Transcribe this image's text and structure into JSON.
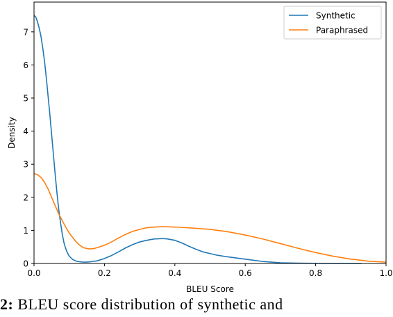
{
  "caption": {
    "figure_label": "2:",
    "text": "BLEU score distribution of synthetic and"
  },
  "chart_data": {
    "type": "line",
    "xlabel": "BLEU Score",
    "ylabel": "Density",
    "xlim": [
      0.0,
      1.0
    ],
    "ylim": [
      0,
      7.9
    ],
    "xticks": [
      "0.0",
      "0.2",
      "0.4",
      "0.6",
      "0.8",
      "1.0"
    ],
    "yticks": [
      "0",
      "1",
      "2",
      "3",
      "4",
      "5",
      "6",
      "7"
    ],
    "legend_position": "top-right",
    "grid": false,
    "series": [
      {
        "name": "Synthetic",
        "color": "#1f77b4",
        "x": [
          0.0,
          0.005,
          0.01,
          0.015,
          0.02,
          0.025,
          0.03,
          0.035,
          0.04,
          0.045,
          0.05,
          0.055,
          0.06,
          0.065,
          0.07,
          0.075,
          0.08,
          0.085,
          0.09,
          0.095,
          0.1,
          0.11,
          0.12,
          0.13,
          0.14,
          0.15,
          0.16,
          0.18,
          0.2,
          0.22,
          0.24,
          0.26,
          0.28,
          0.3,
          0.32,
          0.34,
          0.36,
          0.37,
          0.38,
          0.4,
          0.42,
          0.44,
          0.46,
          0.48,
          0.5,
          0.52,
          0.55,
          0.6,
          0.65,
          0.7,
          0.75,
          0.8,
          0.85,
          0.9,
          0.93
        ],
        "y": [
          7.5,
          7.45,
          7.3,
          7.1,
          6.85,
          6.5,
          6.1,
          5.6,
          5.05,
          4.5,
          3.9,
          3.3,
          2.7,
          2.15,
          1.65,
          1.25,
          0.9,
          0.63,
          0.45,
          0.32,
          0.22,
          0.12,
          0.07,
          0.05,
          0.04,
          0.04,
          0.05,
          0.08,
          0.15,
          0.24,
          0.35,
          0.47,
          0.57,
          0.65,
          0.7,
          0.74,
          0.75,
          0.75,
          0.74,
          0.7,
          0.62,
          0.52,
          0.43,
          0.35,
          0.3,
          0.25,
          0.2,
          0.13,
          0.06,
          0.02,
          0.01,
          0.005,
          0.0,
          0.0,
          0.0
        ]
      },
      {
        "name": "Paraphrased",
        "color": "#ff7f0e",
        "x": [
          0.0,
          0.01,
          0.02,
          0.03,
          0.04,
          0.05,
          0.06,
          0.07,
          0.08,
          0.09,
          0.1,
          0.11,
          0.12,
          0.13,
          0.14,
          0.15,
          0.16,
          0.17,
          0.18,
          0.2,
          0.22,
          0.24,
          0.26,
          0.28,
          0.3,
          0.32,
          0.34,
          0.36,
          0.38,
          0.4,
          0.42,
          0.45,
          0.5,
          0.55,
          0.6,
          0.65,
          0.7,
          0.75,
          0.8,
          0.85,
          0.9,
          0.95,
          1.0
        ],
        "y": [
          2.72,
          2.68,
          2.6,
          2.45,
          2.25,
          2.0,
          1.75,
          1.5,
          1.3,
          1.1,
          0.92,
          0.78,
          0.65,
          0.55,
          0.48,
          0.45,
          0.44,
          0.45,
          0.48,
          0.55,
          0.65,
          0.77,
          0.88,
          0.97,
          1.03,
          1.08,
          1.1,
          1.11,
          1.11,
          1.1,
          1.09,
          1.07,
          1.03,
          0.96,
          0.86,
          0.74,
          0.6,
          0.46,
          0.33,
          0.22,
          0.13,
          0.07,
          0.04
        ]
      }
    ]
  }
}
